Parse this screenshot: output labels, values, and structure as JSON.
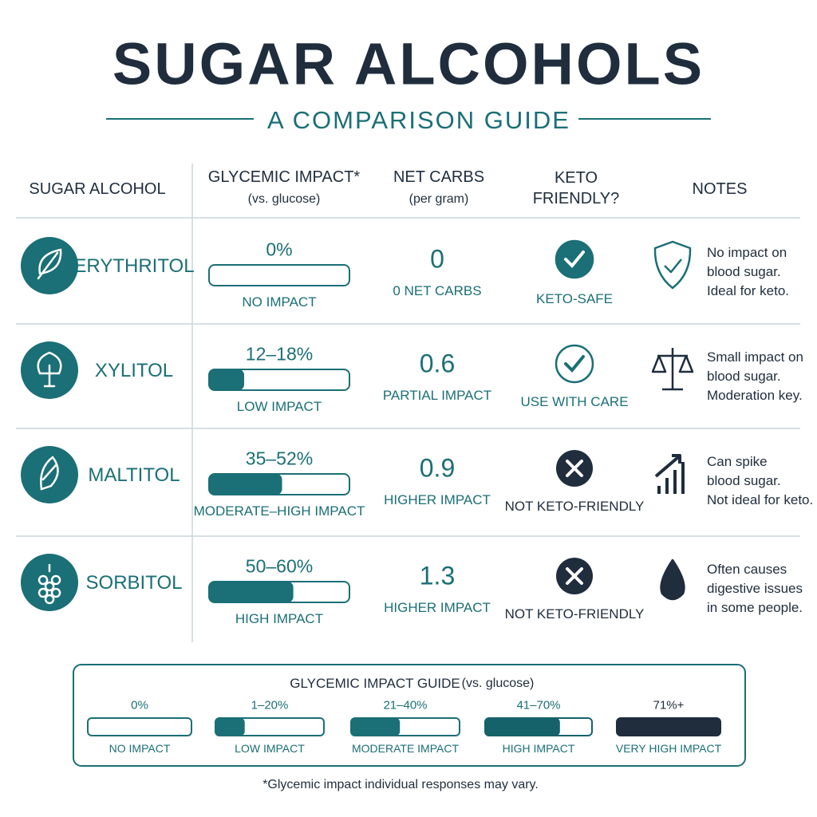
{
  "header": {
    "title": "SUGAR ALCOHOLS",
    "subtitle": "A COMPARISON GUIDE"
  },
  "table": {
    "columns": [
      {
        "title": "SUGAR ALCOHOL"
      },
      {
        "title": "GLYCEMIC IMPACT*",
        "subtitle": "(vs. glucose)"
      },
      {
        "title": "NET CARBS",
        "subtitle": "(per gram)"
      },
      {
        "title": "KETO FRIENDLY?"
      },
      {
        "title": "NOTES"
      }
    ],
    "rows": [
      {
        "name": "ERYTHRITOL",
        "glycemic": "0%",
        "glycemic_label": "NO IMPACT",
        "net_carbs": 0,
        "net_carbs_label": "0 NET CARBS",
        "keto": "KETO-SAFE",
        "notes": [
          "No impact on",
          "blood sugar.",
          "Ideal for keto."
        ]
      },
      {
        "name": "XYLITOL",
        "glycemic": "12–18%",
        "glycemic_label": "LOW IMPACT",
        "net_carbs": 0.6,
        "net_carbs_label": "PARTIAL IMPACT",
        "keto": "USE WITH CARE",
        "notes": [
          "Small impact on",
          "blood sugar.",
          "Moderation key."
        ]
      },
      {
        "name": "MALTITOL",
        "glycemic": "35–52%",
        "glycemic_label": "MODERATE–HIGH IMPACT",
        "net_carbs": 0.9,
        "net_carbs_label": "HIGHER IMPACT",
        "keto": "NOT KETO-FRIENDLY",
        "notes": [
          "Can spike",
          "blood sugar.",
          "Not ideal for keto."
        ]
      },
      {
        "name": "SORBITOL",
        "glycemic": "50–60%",
        "glycemic_label": "HIGH IMPACT",
        "net_carbs": 1.3,
        "net_carbs_label": "HIGHER IMPACT",
        "keto": "NOT KETO-FRIENDLY",
        "notes": [
          "Often causes",
          "digestive issues",
          "in some people."
        ]
      }
    ]
  },
  "guide": {
    "title": "GLYCEMIC IMPACT GUIDE",
    "title_note": "(vs. glucose)",
    "levels": [
      {
        "range": "0%",
        "label": "NO IMPACT"
      },
      {
        "range": "1–20%",
        "label": "LOW IMPACT"
      },
      {
        "range": "21–40%",
        "label": "MODERATE IMPACT"
      },
      {
        "range": "41–70%",
        "label": "HIGH IMPACT"
      },
      {
        "range": "71%+",
        "label": "VERY HIGH IMPACT"
      }
    ]
  },
  "footnote": "*Glycemic impact individual responses may vary."
}
